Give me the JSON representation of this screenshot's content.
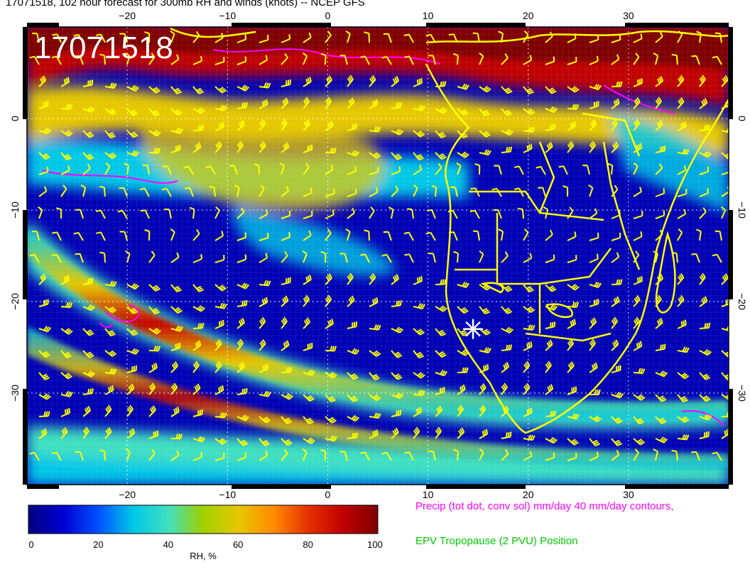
{
  "title": "17071518, 102 hour forecast for 300mb RH and winds (knots) -- NCEP GFS",
  "stamp": "17071518",
  "map": {
    "lon_ticks": [
      "−20",
      "−10",
      "0",
      "10",
      "20",
      "30"
    ],
    "lat_ticks": [
      "0",
      "−10",
      "−20",
      "−30"
    ],
    "lon_values": [
      -20,
      -10,
      0,
      10,
      20,
      30
    ],
    "lat_values": [
      0,
      -10,
      -20,
      -30
    ],
    "lon_range": [
      -30,
      40
    ],
    "lat_range": [
      -40,
      10
    ],
    "marker": {
      "lon": 14.5,
      "lat": -23
    },
    "coastline_color": "#ffff00",
    "precip_contour_color": "#ff00ff",
    "wind_barb_color": "#ffff00"
  },
  "colorbar": {
    "label": "RH, %",
    "ticks": [
      "0",
      "20",
      "40",
      "60",
      "80",
      "100"
    ],
    "tick_values": [
      0,
      20,
      40,
      60,
      80,
      100
    ],
    "range": [
      0,
      100
    ],
    "colors": [
      "#00007f",
      "#0000d4",
      "#0050ff",
      "#00c8e6",
      "#40e0c0",
      "#a0d000",
      "#e6c800",
      "#ff8c00",
      "#e63000",
      "#c00000",
      "#7f0000"
    ]
  },
  "legend": {
    "precip": "Precip (tot dot, conv sol) mm/day 40 mm/day contours,",
    "precip_color": "#ff00ff",
    "epv": "EPV Tropopause (2 PVU) Position",
    "epv_color": "#00cc00"
  }
}
